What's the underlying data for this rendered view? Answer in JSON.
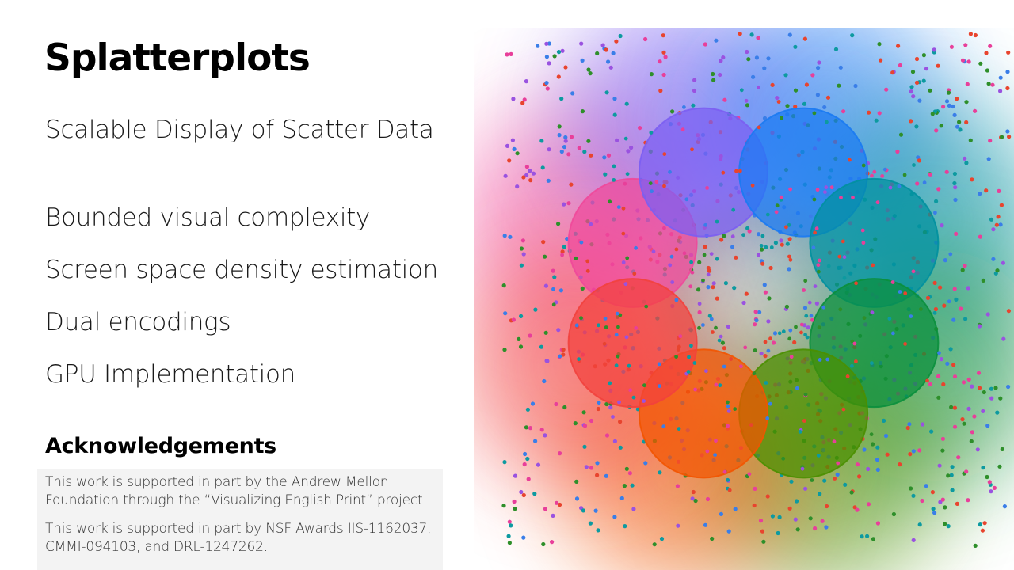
{
  "slide": {
    "title": "Splatterplots",
    "subtitle": "Scalable Display of Scatter Data",
    "bullets": [
      "Bounded visual complexity",
      "Screen space density estimation",
      "Dual encodings",
      "GPU Implementation"
    ],
    "acknowledgements": {
      "heading": "Acknowledgements",
      "paragraphs": [
        "This work is supported in part by the Andrew Mellon Foundation through the “Visualizing English Print” project.",
        "This work is supported in part by NSF Awards IIS-1162037, CMMI-094103, and DRL-1247262."
      ]
    }
  },
  "colors": {
    "series": [
      "#f0489a",
      "#7b5ef2",
      "#1a7af2",
      "#00909f",
      "#0a8f3c",
      "#4a8f00",
      "#f25400",
      "#f2413d"
    ],
    "point_palette": [
      "#e8442e",
      "#2e8f2a",
      "#3a7ee8",
      "#9a52e0",
      "#e83f9a",
      "#0d9aa0"
    ]
  }
}
